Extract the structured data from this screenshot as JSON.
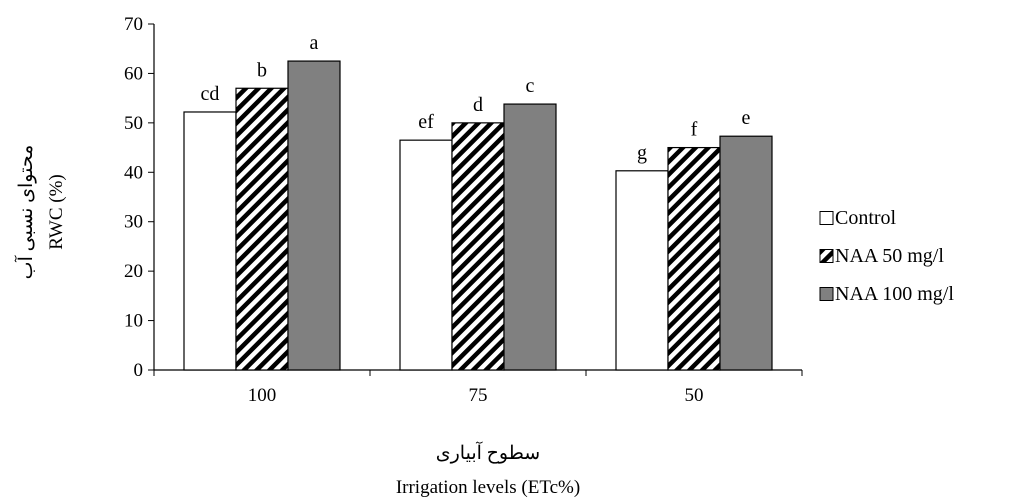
{
  "chart_data": {
    "type": "bar",
    "categories": [
      "100",
      "75",
      "50"
    ],
    "series": [
      {
        "name": "Control",
        "values": [
          52.2,
          46.5,
          40.3
        ],
        "letters": [
          "cd",
          "ef",
          "g"
        ],
        "fill": "white"
      },
      {
        "name": "NAA 50 mg/l",
        "values": [
          57.0,
          50.0,
          45.0
        ],
        "letters": [
          "b",
          "d",
          "f"
        ],
        "fill": "hatch"
      },
      {
        "name": "NAA 100 mg/l",
        "values": [
          62.5,
          53.8,
          47.3
        ],
        "letters": [
          "a",
          "c",
          "e"
        ],
        "fill": "gray"
      }
    ],
    "ylim": [
      0,
      70
    ],
    "yticks": [
      0,
      10,
      20,
      30,
      40,
      50,
      60,
      70
    ],
    "ylabel_fa": "محتوای نسبی آب",
    "ylabel_en": "RWC (%)",
    "xlabel_fa": "سطوح آبیاری",
    "xlabel_en": "Irrigation levels (ETc%)",
    "legend_position": "right",
    "colors": {
      "gray": "#808080",
      "outline": "#000000",
      "hatch_bg": "#ffffff"
    }
  }
}
